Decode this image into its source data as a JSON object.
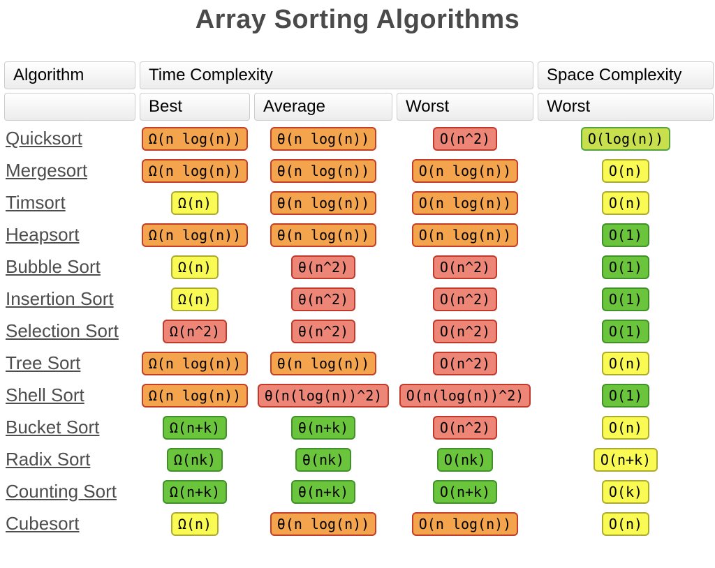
{
  "title": "Array Sorting Algorithms",
  "colors": {
    "title_text": "#4a4a4a",
    "link_text": "#4d4d4d",
    "orange": {
      "bg": "#F3A44C",
      "border": "#C33D27"
    },
    "red": {
      "bg": "#EE8678",
      "border": "#C0392B"
    },
    "yellow": {
      "bg": "#FAFA55",
      "border": "#ACAB30"
    },
    "yellowgreen": {
      "bg": "#C8E04D",
      "border": "#54A33B"
    },
    "green": {
      "bg": "#6AC43C",
      "border": "#41902A"
    }
  },
  "table": {
    "headers": {
      "algorithm": "Algorithm",
      "time": "Time Complexity",
      "space": "Space Complexity",
      "best": "Best",
      "average": "Average",
      "worst": "Worst",
      "space_worst": "Worst"
    },
    "rows": [
      {
        "name": "Quicksort",
        "cells": [
          {
            "text": "Ω(n log(n))",
            "color": "orange"
          },
          {
            "text": "θ(n log(n))",
            "color": "orange"
          },
          {
            "text": "O(n^2)",
            "color": "red"
          },
          {
            "text": "O(log(n))",
            "color": "yellowgreen"
          }
        ]
      },
      {
        "name": "Mergesort",
        "cells": [
          {
            "text": "Ω(n log(n))",
            "color": "orange"
          },
          {
            "text": "θ(n log(n))",
            "color": "orange"
          },
          {
            "text": "O(n log(n))",
            "color": "orange"
          },
          {
            "text": "O(n)",
            "color": "yellow"
          }
        ]
      },
      {
        "name": "Timsort",
        "cells": [
          {
            "text": "Ω(n)",
            "color": "yellow"
          },
          {
            "text": "θ(n log(n))",
            "color": "orange"
          },
          {
            "text": "O(n log(n))",
            "color": "orange"
          },
          {
            "text": "O(n)",
            "color": "yellow"
          }
        ]
      },
      {
        "name": "Heapsort",
        "cells": [
          {
            "text": "Ω(n log(n))",
            "color": "orange"
          },
          {
            "text": "θ(n log(n))",
            "color": "orange"
          },
          {
            "text": "O(n log(n))",
            "color": "orange"
          },
          {
            "text": "O(1)",
            "color": "green"
          }
        ]
      },
      {
        "name": "Bubble Sort",
        "cells": [
          {
            "text": "Ω(n)",
            "color": "yellow"
          },
          {
            "text": "θ(n^2)",
            "color": "red"
          },
          {
            "text": "O(n^2)",
            "color": "red"
          },
          {
            "text": "O(1)",
            "color": "green"
          }
        ]
      },
      {
        "name": "Insertion Sort",
        "cells": [
          {
            "text": "Ω(n)",
            "color": "yellow"
          },
          {
            "text": "θ(n^2)",
            "color": "red"
          },
          {
            "text": "O(n^2)",
            "color": "red"
          },
          {
            "text": "O(1)",
            "color": "green"
          }
        ]
      },
      {
        "name": "Selection Sort",
        "cells": [
          {
            "text": "Ω(n^2)",
            "color": "red"
          },
          {
            "text": "θ(n^2)",
            "color": "red"
          },
          {
            "text": "O(n^2)",
            "color": "red"
          },
          {
            "text": "O(1)",
            "color": "green"
          }
        ]
      },
      {
        "name": "Tree Sort",
        "cells": [
          {
            "text": "Ω(n log(n))",
            "color": "orange"
          },
          {
            "text": "θ(n log(n))",
            "color": "orange"
          },
          {
            "text": "O(n^2)",
            "color": "red"
          },
          {
            "text": "O(n)",
            "color": "yellow"
          }
        ]
      },
      {
        "name": "Shell Sort",
        "cells": [
          {
            "text": "Ω(n log(n))",
            "color": "orange"
          },
          {
            "text": "θ(n(log(n))^2)",
            "color": "red"
          },
          {
            "text": "O(n(log(n))^2)",
            "color": "red"
          },
          {
            "text": "O(1)",
            "color": "green"
          }
        ]
      },
      {
        "name": "Bucket Sort",
        "cells": [
          {
            "text": "Ω(n+k)",
            "color": "green"
          },
          {
            "text": "θ(n+k)",
            "color": "green"
          },
          {
            "text": "O(n^2)",
            "color": "red"
          },
          {
            "text": "O(n)",
            "color": "yellow"
          }
        ]
      },
      {
        "name": "Radix Sort",
        "cells": [
          {
            "text": "Ω(nk)",
            "color": "green"
          },
          {
            "text": "θ(nk)",
            "color": "green"
          },
          {
            "text": "O(nk)",
            "color": "green"
          },
          {
            "text": "O(n+k)",
            "color": "yellow"
          }
        ]
      },
      {
        "name": "Counting Sort",
        "cells": [
          {
            "text": "Ω(n+k)",
            "color": "green"
          },
          {
            "text": "θ(n+k)",
            "color": "green"
          },
          {
            "text": "O(n+k)",
            "color": "green"
          },
          {
            "text": "O(k)",
            "color": "yellow"
          }
        ]
      },
      {
        "name": "Cubesort",
        "cells": [
          {
            "text": "Ω(n)",
            "color": "yellow"
          },
          {
            "text": "θ(n log(n))",
            "color": "orange"
          },
          {
            "text": "O(n log(n))",
            "color": "orange"
          },
          {
            "text": "O(n)",
            "color": "yellow"
          }
        ]
      }
    ]
  }
}
